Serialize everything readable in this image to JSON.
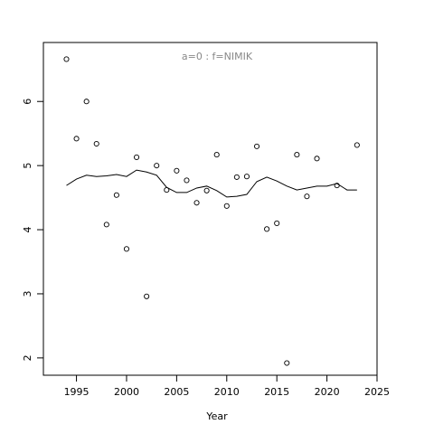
{
  "chart_data": {
    "type": "scatter",
    "title": "a=0  :  f=NIMIK",
    "x_label": "Year",
    "xlim": [
      1991.7,
      2025
    ],
    "ylim": [
      1.73,
      6.92
    ],
    "xticks": [
      1995,
      2000,
      2005,
      2010,
      2015,
      2020,
      2025
    ],
    "yticks": [
      2,
      3,
      4,
      5,
      6
    ],
    "series": [
      {
        "type": "points",
        "color": "#000000",
        "x": [
          1994,
          1995,
          1996,
          1997,
          1998,
          1999,
          2000,
          2001,
          2002,
          2003,
          2004,
          2005,
          2006,
          2007,
          2008,
          2009,
          2010,
          2011,
          2012,
          2013,
          2014,
          2015,
          2016,
          2017,
          2018,
          2019,
          2021,
          2023
        ],
        "y": [
          6.66,
          5.42,
          6.0,
          5.34,
          4.08,
          4.54,
          3.7,
          5.13,
          2.96,
          5.0,
          4.62,
          4.92,
          4.77,
          4.42,
          4.61,
          5.17,
          4.37,
          4.82,
          4.83,
          5.3,
          4.01,
          4.1,
          1.92,
          5.17,
          4.52,
          5.11,
          4.69,
          5.32
        ]
      },
      {
        "type": "line",
        "color": "#000000",
        "x": [
          1994,
          1995,
          1996,
          1997,
          1998,
          1999,
          2000,
          2001,
          2002,
          2003,
          2004,
          2005,
          2006,
          2007,
          2008,
          2009,
          2010,
          2011,
          2012,
          2013,
          2014,
          2015,
          2016,
          2017,
          2018,
          2019,
          2020,
          2021,
          2022,
          2023
        ],
        "y": [
          4.69,
          4.79,
          4.85,
          4.83,
          4.84,
          4.86,
          4.83,
          4.93,
          4.9,
          4.85,
          4.66,
          4.58,
          4.58,
          4.65,
          4.68,
          4.61,
          4.51,
          4.52,
          4.55,
          4.75,
          4.82,
          4.76,
          4.68,
          4.62,
          4.65,
          4.68,
          4.68,
          4.72,
          4.62,
          4.62
        ]
      }
    ]
  }
}
